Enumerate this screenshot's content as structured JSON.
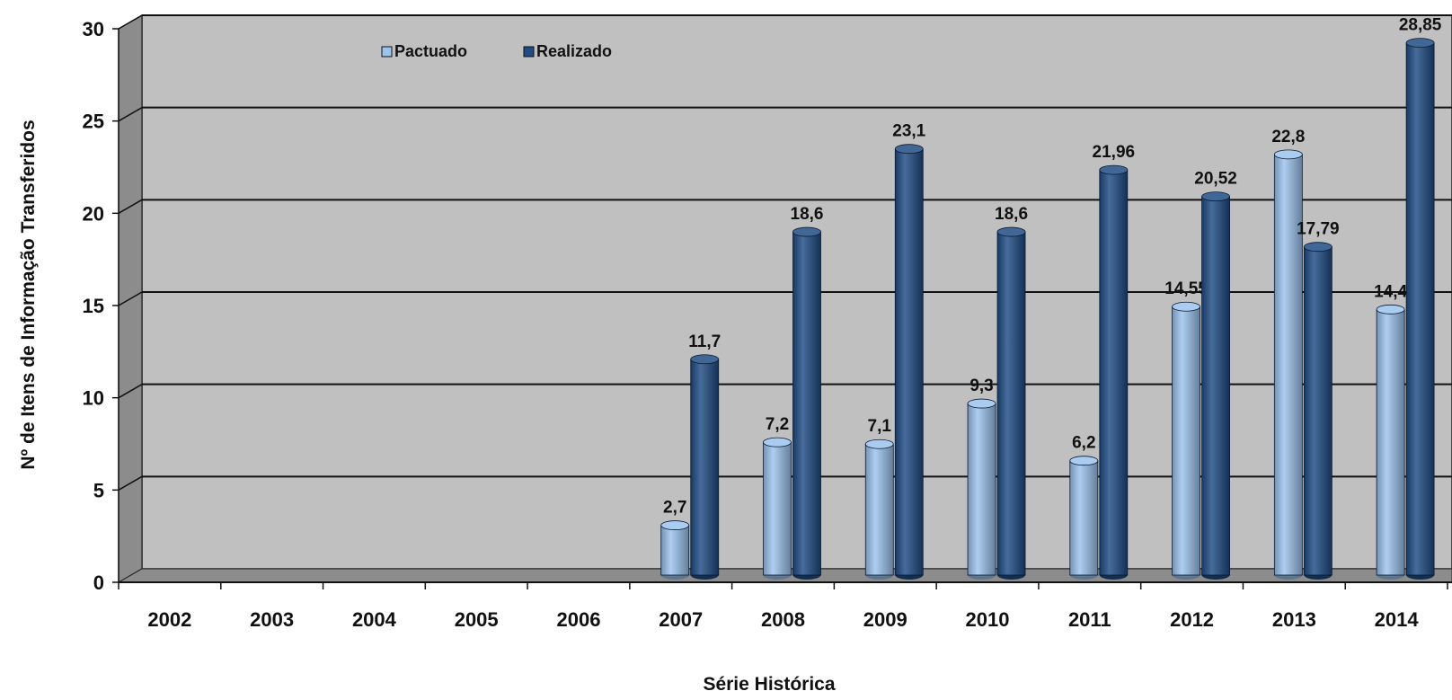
{
  "chart_data": {
    "type": "bar",
    "categories": [
      "2002",
      "2003",
      "2004",
      "2005",
      "2006",
      "2007",
      "2008",
      "2009",
      "2010",
      "2011",
      "2012",
      "2013",
      "2014"
    ],
    "series": [
      {
        "name": "Pactuado",
        "values": [
          null,
          null,
          null,
          null,
          null,
          2.7,
          7.2,
          7.1,
          9.3,
          6.2,
          14.55,
          22.8,
          14.4
        ],
        "labels": [
          "",
          "",
          "",
          "",
          "",
          "2,7",
          "7,2",
          "7,1",
          "9,3",
          "6,2",
          "14,55",
          "22,8",
          "14,4"
        ]
      },
      {
        "name": "Realizado",
        "values": [
          null,
          null,
          null,
          null,
          null,
          11.7,
          18.6,
          23.1,
          18.6,
          21.96,
          20.52,
          17.79,
          28.85
        ],
        "labels": [
          "",
          "",
          "",
          "",
          "",
          "11,7",
          "18,6",
          "23,1",
          "18,6",
          "21,96",
          "20,52",
          "17,79",
          "28,85"
        ]
      }
    ],
    "colors": {
      "Pactuado": "#9cc3ee",
      "Realizado": "#1f4c85",
      "plot_background": "#c0c0c0",
      "side_wall": "#8c8c8c",
      "floor": "#8c8c8c"
    },
    "yticks": [
      "0",
      "5",
      "10",
      "15",
      "20",
      "25",
      "30"
    ],
    "ylim": [
      0,
      30
    ],
    "xlabel": "Série Histórica",
    "ylabel": "Nº de Itens de Informação Transferidos",
    "grid": true,
    "legend_position": "top-left",
    "style": "3d-cylinder"
  }
}
